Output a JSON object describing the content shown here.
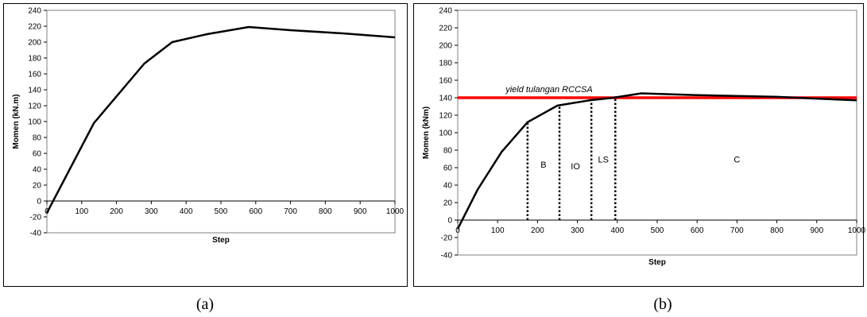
{
  "chart_data": [
    {
      "id": "a",
      "type": "line",
      "xlabel": "Step",
      "ylabel": "Momen (kN.m)",
      "xlim": [
        0,
        1000
      ],
      "ylim": [
        -40,
        240
      ],
      "xticks": [
        0,
        100,
        200,
        300,
        400,
        500,
        600,
        700,
        800,
        900,
        1000
      ],
      "yticks": [
        -40,
        -20,
        0,
        20,
        40,
        60,
        80,
        100,
        120,
        140,
        160,
        180,
        200,
        220,
        240
      ],
      "grid": false,
      "series": [
        {
          "x": [
            0,
            135,
            280,
            360,
            460,
            580,
            700,
            850,
            1000
          ],
          "y": [
            -15,
            98,
            173,
            200,
            210,
            219,
            215,
            211,
            206
          ],
          "color": "#000000"
        }
      ]
    },
    {
      "id": "b",
      "type": "line",
      "xlabel": "Step",
      "ylabel": "Momen (kNm)",
      "xlim": [
        0,
        1000
      ],
      "ylim": [
        -40,
        240
      ],
      "xticks": [
        0,
        100,
        200,
        300,
        400,
        500,
        600,
        700,
        800,
        900,
        1000
      ],
      "yticks": [
        -40,
        -20,
        0,
        20,
        40,
        60,
        80,
        100,
        120,
        140,
        160,
        180,
        200,
        220,
        240
      ],
      "grid": false,
      "series": [
        {
          "x": [
            0,
            50,
            110,
            175,
            250,
            330,
            390,
            460,
            600,
            800,
            1000
          ],
          "y": [
            -10,
            35,
            78,
            112,
            131,
            137,
            140,
            145,
            143,
            141,
            137
          ],
          "color": "#000000"
        }
      ],
      "hline": {
        "y": 140,
        "color": "#ff0000",
        "label": "yield tulangan RCCSA"
      },
      "vlines": [
        175,
        255,
        335,
        395
      ],
      "zones": [
        {
          "label": "B",
          "x": 215,
          "y": 60
        },
        {
          "label": "IO",
          "x": 295,
          "y": 58
        },
        {
          "label": "LS",
          "x": 365,
          "y": 66
        },
        {
          "label": "C",
          "x": 700,
          "y": 66
        }
      ]
    }
  ],
  "captions": {
    "a": "(a)",
    "b": "(b)"
  }
}
